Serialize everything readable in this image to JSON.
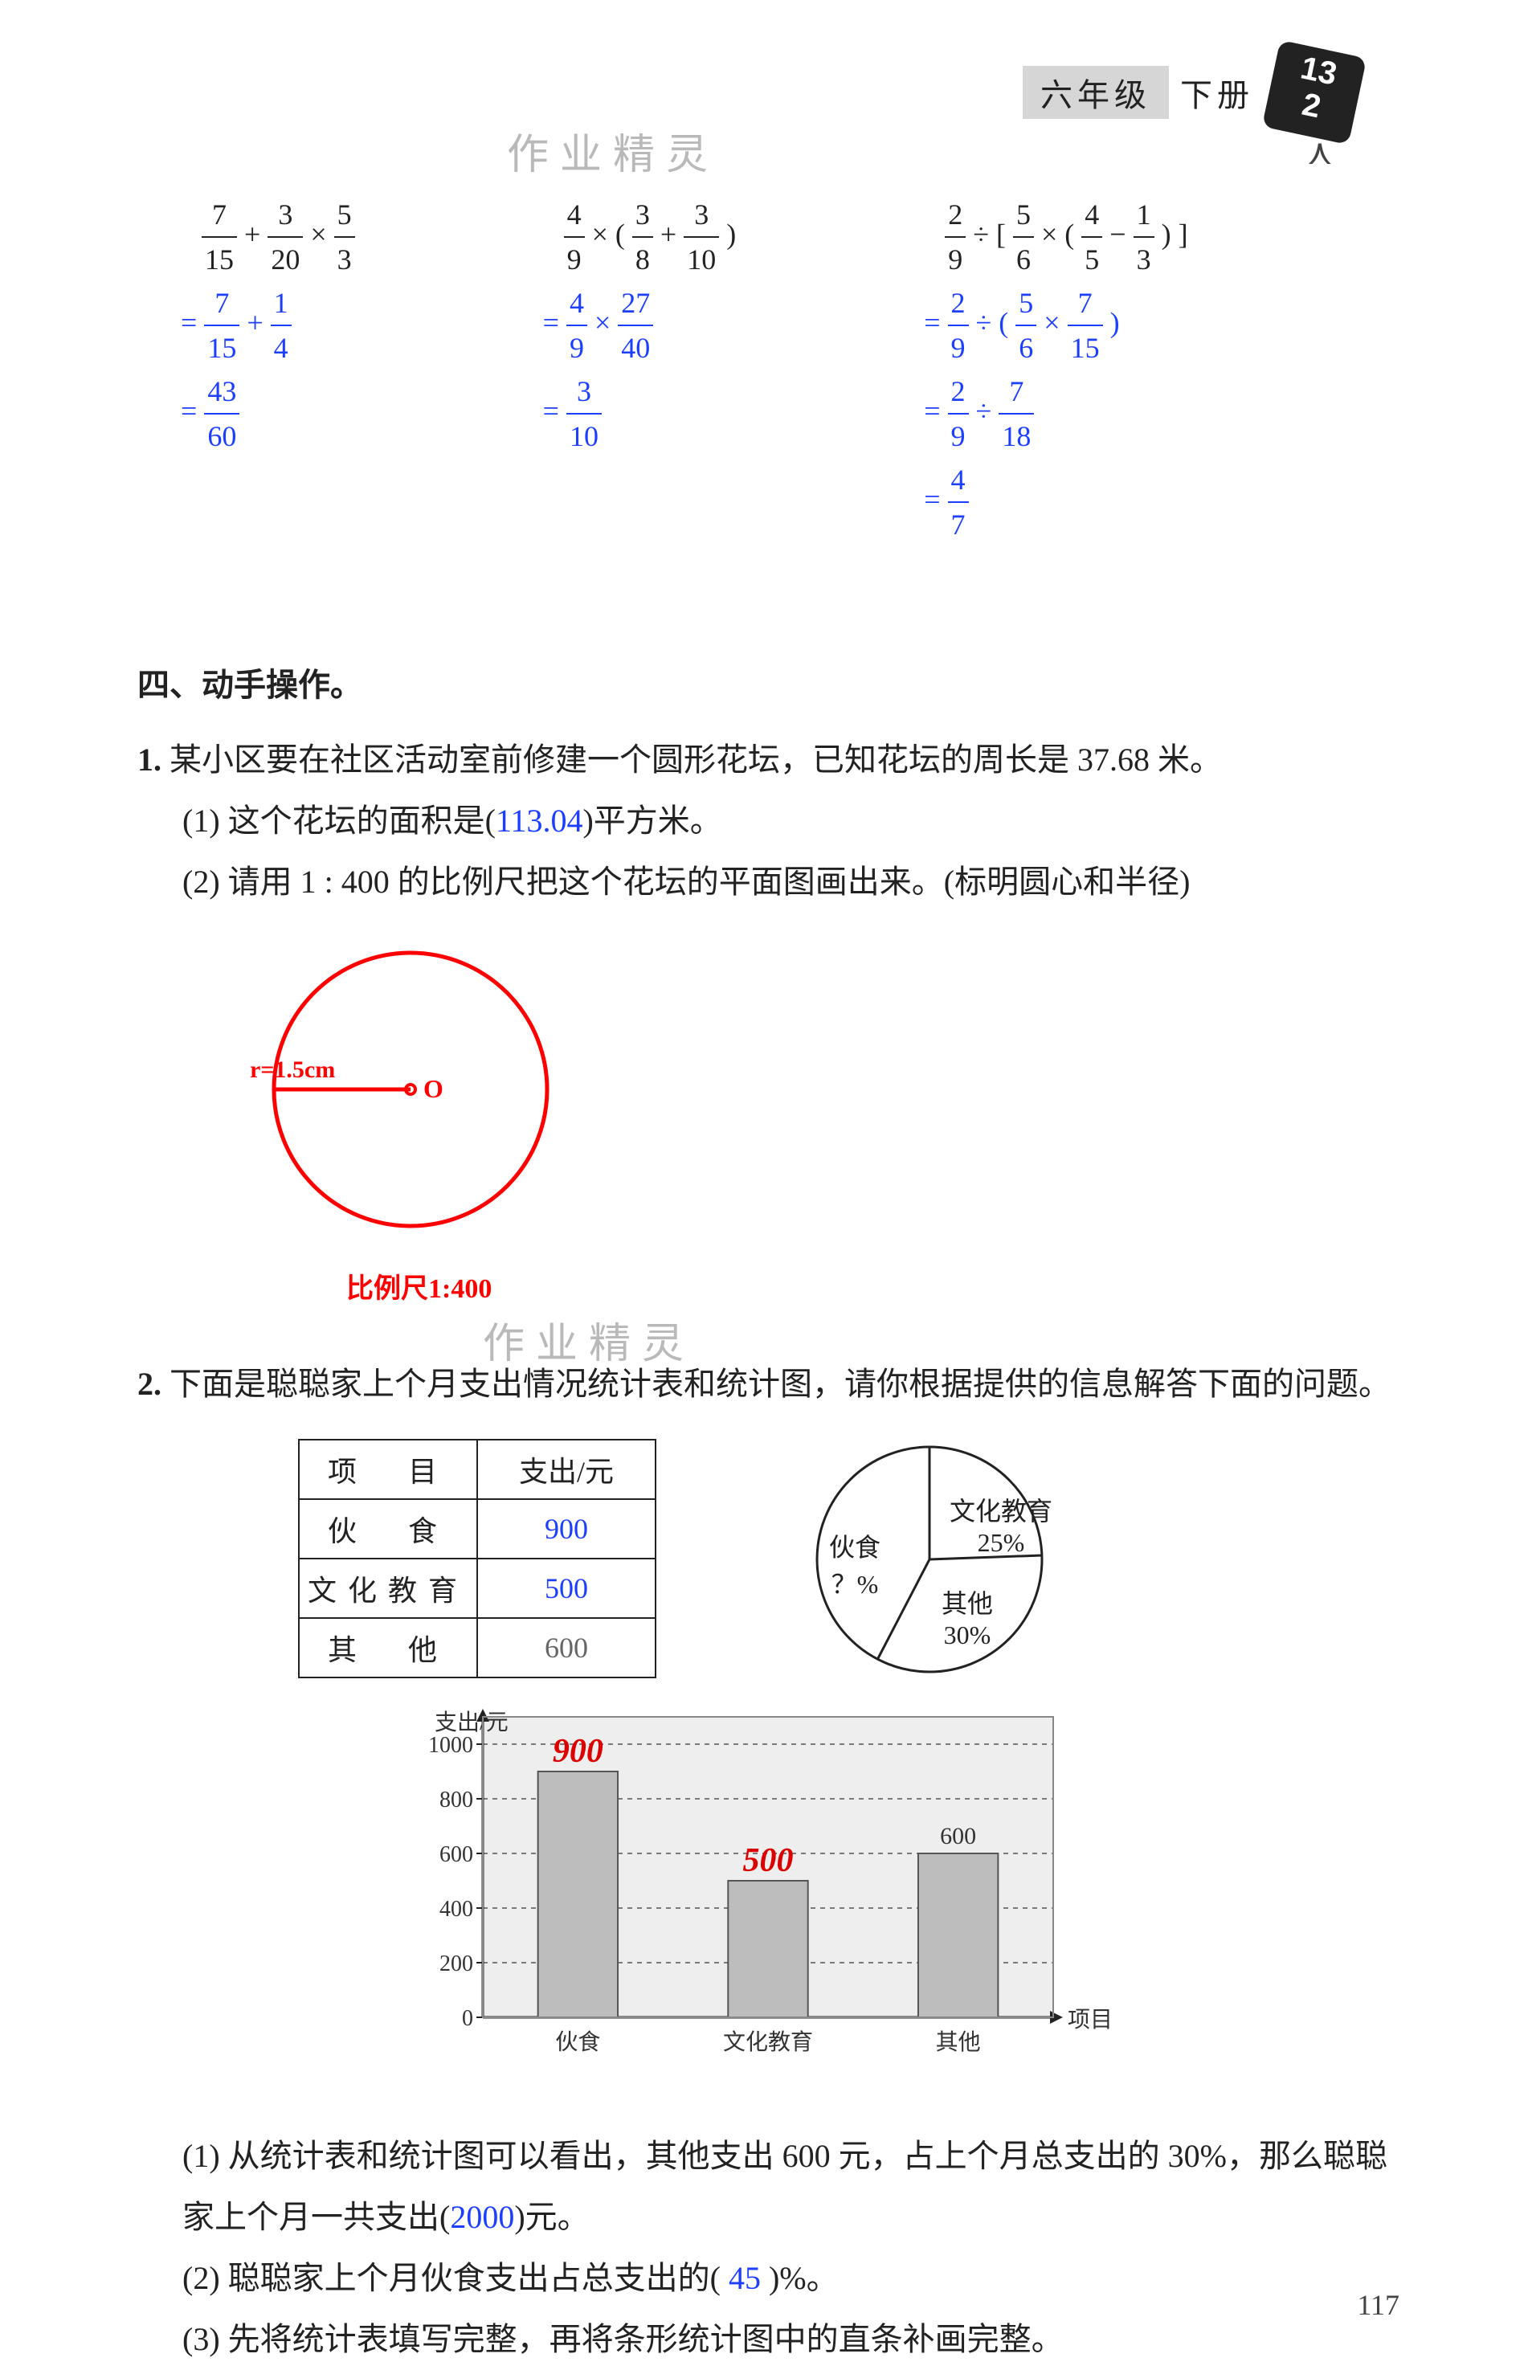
{
  "header": {
    "grade": "六年级",
    "volume": "下册",
    "board_top": "13",
    "board_bottom": "2"
  },
  "watermark": "作业精灵",
  "calc": {
    "a": {
      "expr_html": "<span class='frac'><span class='n'>7</span><span class='d'>15</span></span> + <span class='frac'><span class='n'>3</span><span class='d'>20</span></span> × <span class='frac'><span class='n'>5</span><span class='d'>3</span></span>",
      "step1": "= <span class='frac'><span class='n'>7</span><span class='d'>15</span></span> + <span class='frac'><span class='n'>1</span><span class='d'>4</span></span>",
      "step2": "= <span class='frac'><span class='n'>43</span><span class='d'>60</span></span>"
    },
    "b": {
      "expr_html": "<span class='frac'><span class='n'>4</span><span class='d'>9</span></span> × ( <span class='frac'><span class='n'>3</span><span class='d'>8</span></span> + <span class='frac'><span class='n'>3</span><span class='d'>10</span></span> )",
      "step1": "= <span class='frac'><span class='n'>4</span><span class='d'>9</span></span> × <span class='frac'><span class='n'>27</span><span class='d'>40</span></span>",
      "step2": "= <span class='frac'><span class='n'>3</span><span class='d'>10</span></span>"
    },
    "c": {
      "expr_html": "<span class='frac'><span class='n'>2</span><span class='d'>9</span></span> ÷ [ <span class='frac'><span class='n'>5</span><span class='d'>6</span></span> × ( <span class='frac'><span class='n'>4</span><span class='d'>5</span></span> − <span class='frac'><span class='n'>1</span><span class='d'>3</span></span> ) ]",
      "step1": "= <span class='frac'><span class='n'>2</span><span class='d'>9</span></span> ÷ ( <span class='frac'><span class='n'>5</span><span class='d'>6</span></span> × <span class='frac'><span class='n'>7</span><span class='d'>15</span></span> )",
      "step2": "= <span class='frac'><span class='n'>2</span><span class='d'>9</span></span> ÷ <span class='frac'><span class='n'>7</span><span class='d'>18</span></span>",
      "step3": "= <span class='frac'><span class='n'>4</span><span class='d'>7</span></span>"
    }
  },
  "section4": {
    "title": "四、动手操作。",
    "p1": {
      "num": "1.",
      "text": "某小区要在社区活动室前修建一个圆形花坛，已知花坛的周长是 37.68 米。",
      "sub1_pre": "(1) 这个花坛的面积是(",
      "sub1_ans": "113.04",
      "sub1_post": ")平方米。",
      "sub2": "(2) 请用 1 : 400 的比例尺把这个花坛的平面图画出来。(标明圆心和半径)",
      "radius_label": "r=1.5cm",
      "center_label": "O",
      "scale_label": "比例尺1:400"
    },
    "p2": {
      "num": "2.",
      "text": "下面是聪聪家上个月支出情况统计表和统计图，请你根据提供的信息解答下面的问题。",
      "table": {
        "headers": [
          "项　目",
          "支出/元"
        ],
        "rows": [
          {
            "name": "伙　食",
            "value": "900",
            "ans": true
          },
          {
            "name": "文化教育",
            "value": "500",
            "ans": true
          },
          {
            "name": "其　他",
            "value": "600",
            "ans": false
          }
        ]
      },
      "pie": {
        "type": "pie",
        "labels": {
          "food": "伙食",
          "food_pct": "？%",
          "edu": "文化教育",
          "edu_pct": "25%",
          "other": "其他",
          "other_pct": "30%"
        },
        "slices": [
          45,
          25,
          30
        ],
        "stroke": "#222",
        "bg": "#ffffff"
      },
      "bar": {
        "type": "bar",
        "ylabel": "支出/元",
        "xlabel": "项目",
        "categories": [
          "伙食",
          "文化教育",
          "其他"
        ],
        "values": [
          900,
          500,
          600
        ],
        "value_labels": [
          "900",
          "500",
          "600"
        ],
        "value_label_color": "#d00",
        "ylim": [
          0,
          1000
        ],
        "ytick_step": 200,
        "bar_color": "#bdbdbd",
        "bar_stroke": "#555",
        "grid_color": "#555",
        "grid_dash": "6,6",
        "bg": "#eeeeee",
        "label_fontsize": 28,
        "value_label_fontsize": 42
      },
      "q1_pre": "(1) 从统计表和统计图可以看出，其他支出 600 元，占上个月总支出的 30%，那么聪聪家上个月一共支出(",
      "q1_ans": "2000",
      "q1_post": ")元。",
      "q2_pre": "(2) 聪聪家上个月伙食支出占总支出的(",
      "q2_ans": "45",
      "q2_post": ")%。",
      "q3": "(3) 先将统计表填写完整，再将条形统计图中的直条补画完整。"
    }
  },
  "page_number": "117"
}
